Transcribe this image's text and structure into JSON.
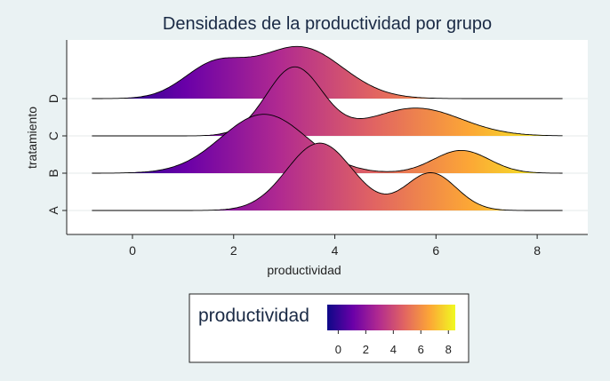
{
  "chart_data": {
    "type": "ridgeline",
    "title": "Densidades de la productividad por grupo",
    "xlabel": "productividad",
    "ylabel": "tratamiento",
    "xlim": [
      -1.3,
      9.0
    ],
    "x_ticks": [
      0,
      2,
      4,
      6,
      8
    ],
    "categories": [
      "A",
      "B",
      "C",
      "D"
    ],
    "x_support": [
      -0.8,
      8.5
    ],
    "colormap": [
      "#0d0887",
      "#6a00a8",
      "#b12a90",
      "#e16462",
      "#fca636",
      "#f0f921"
    ],
    "color_range": [
      -0.8,
      8.5
    ],
    "grid": true,
    "series": [
      {
        "name": "A",
        "components": [
          {
            "weight": 0.7,
            "mean": 3.7,
            "sd": 0.65
          },
          {
            "weight": 0.3,
            "mean": 5.9,
            "sd": 0.5
          }
        ]
      },
      {
        "name": "B",
        "components": [
          {
            "weight": 0.8,
            "mean": 2.6,
            "sd": 0.85
          },
          {
            "weight": 0.2,
            "mean": 6.5,
            "sd": 0.55
          }
        ]
      },
      {
        "name": "C",
        "components": [
          {
            "weight": 0.6,
            "mean": 3.2,
            "sd": 0.55
          },
          {
            "weight": 0.4,
            "mean": 5.6,
            "sd": 0.9
          }
        ]
      },
      {
        "name": "D",
        "components": [
          {
            "weight": 0.3,
            "mean": 1.6,
            "sd": 0.6
          },
          {
            "weight": 0.7,
            "mean": 3.3,
            "sd": 0.85
          }
        ]
      }
    ],
    "legend": {
      "title": "productividad",
      "ticks": [
        0,
        2,
        4,
        6,
        8
      ],
      "range": [
        -0.8,
        8.5
      ],
      "position": "bottom"
    }
  }
}
